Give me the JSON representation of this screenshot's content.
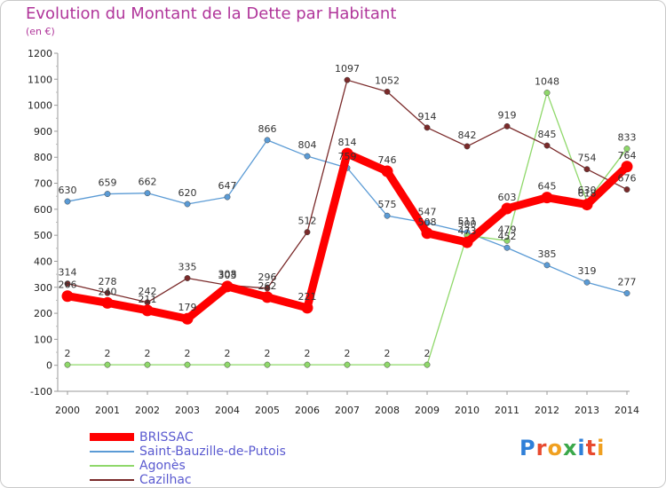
{
  "title": "Evolution du Montant de la Dette par Habitant",
  "subtitle": "(en €)",
  "logo_text": "Proxiti",
  "chart_data": {
    "type": "line",
    "title": "Evolution du Montant de la Dette par Habitant",
    "ylabel": "(en €)",
    "xlabel": "",
    "ylim": [
      -100,
      1200
    ],
    "yticks": [
      -100,
      0,
      100,
      200,
      300,
      400,
      500,
      600,
      700,
      800,
      900,
      1000,
      1100,
      1200
    ],
    "x": [
      "2000",
      "2001",
      "2002",
      "2003",
      "2004",
      "2005",
      "2006",
      "2007",
      "2008",
      "2009",
      "2010",
      "2011",
      "2012",
      "2013",
      "2014"
    ],
    "grid": false,
    "legend_position": "bottom-left",
    "series": [
      {
        "name": "BRISSAC",
        "color": "#ff0000",
        "values": [
          266,
          240,
          211,
          179,
          303,
          262,
          221,
          814,
          746,
          508,
          473,
          603,
          645,
          618,
          764
        ],
        "labels": [
          "266",
          "240",
          "211",
          "179",
          "303",
          "262",
          "221",
          "814",
          "746",
          "508",
          "473",
          "603",
          "645",
          "618",
          "764"
        ]
      },
      {
        "name": "Saint-Bauzille-de-Putois",
        "color": "#5b9bd5",
        "values": [
          630,
          659,
          662,
          620,
          647,
          866,
          804,
          759,
          575,
          547,
          511,
          452,
          385,
          319,
          277
        ],
        "labels": [
          "630",
          "659",
          "662",
          "620",
          "647",
          "866",
          "804",
          "759",
          "575",
          "547",
          "511",
          "452",
          "385",
          "319",
          "277"
        ]
      },
      {
        "name": "Agonès",
        "color": "#8fd86a",
        "values": [
          2,
          2,
          2,
          2,
          2,
          2,
          2,
          2,
          2,
          2,
          500,
          479,
          1048,
          630,
          833
        ],
        "labels": [
          "2",
          "2",
          "2",
          "2",
          "2",
          "2",
          "2",
          "2",
          "2",
          "2",
          "500",
          "479",
          "1048",
          "630",
          "833"
        ]
      },
      {
        "name": "Cazilhac",
        "color": "#7a2a2a",
        "values": [
          314,
          278,
          242,
          335,
          308,
          296,
          512,
          1097,
          1052,
          914,
          842,
          919,
          845,
          754,
          676
        ],
        "labels": [
          "314",
          "278",
          "242",
          "335",
          "308",
          "296",
          "512",
          "1097",
          "1052",
          "914",
          "842",
          "919",
          "845",
          "754",
          "676"
        ]
      }
    ]
  }
}
